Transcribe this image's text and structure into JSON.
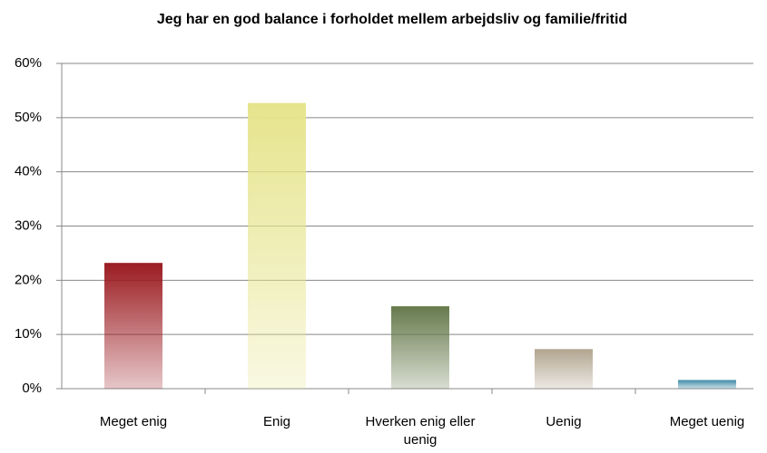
{
  "chart_data": {
    "type": "bar",
    "title": "Jeg har en god balance i forholdet mellem arbejdsliv og familie/fritid",
    "categories": [
      "Meget enig",
      "Enig",
      "Hverken enig eller uenig",
      "Uenig",
      "Meget uenig"
    ],
    "values": [
      23.2,
      52.7,
      15.2,
      7.3,
      1.6
    ],
    "colors": [
      "#9b1c22",
      "#e6e48c",
      "#667a4c",
      "#b2a590",
      "#3f8aa6"
    ],
    "ylim": [
      0,
      60
    ],
    "yticks": [
      {
        "value": 0,
        "label": "0%"
      },
      {
        "value": 10,
        "label": "10%"
      },
      {
        "value": 20,
        "label": "20%"
      },
      {
        "value": 30,
        "label": "30%"
      },
      {
        "value": 40,
        "label": "40%"
      },
      {
        "value": 50,
        "label": "50%"
      },
      {
        "value": 60,
        "label": "60%"
      }
    ],
    "grid": true
  }
}
